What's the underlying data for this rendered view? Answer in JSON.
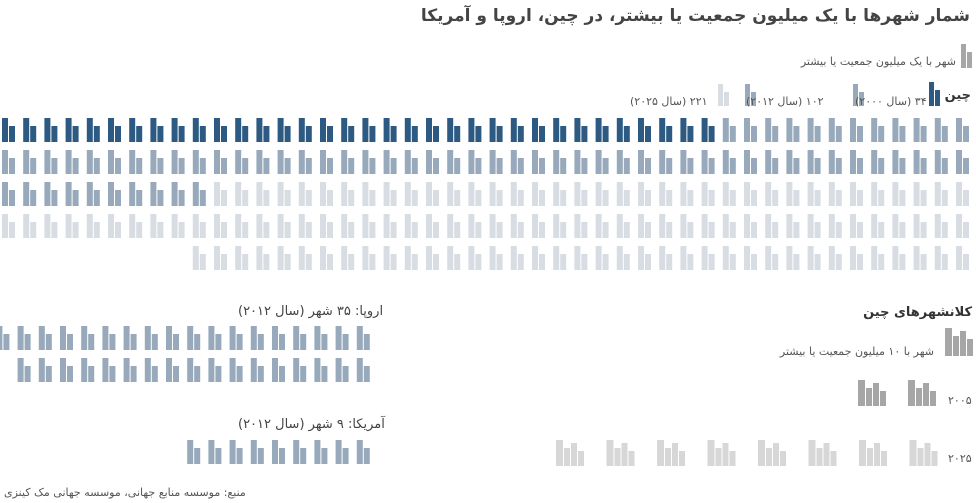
{
  "title": "شمار شهرها با یک میلیون جمعیت یا بیشتر، در چین، اروپا و آمریکا",
  "legend": {
    "unit_label": "شهر با یک میلیون جمعیت یا بیشتر",
    "china_label": "چین",
    "y2000": "۳۴ (سال ۲۰۰۰)",
    "y2012": "۱۰۲ (سال ۲۰۱۲)",
    "y2025": "۲۲۱ (سال ۲۰۲۵)"
  },
  "europe_label": "اروپا: ۳۵ شهر (سال ۲۰۱۲)",
  "america_label": "آمریکا: ۹ شهر (سال ۲۰۱۲)",
  "megacities": {
    "title": "کلانشهرهای چین",
    "unit_label": "شهر با  ۱۰ میلیون جمعیت یا بیشتر",
    "year_2005": "۲۰۰۵",
    "year_2025": "۲۰۲۵"
  },
  "source": "منبع: موسسه منابع جهانی، موسسه جهانی مک کینزی",
  "colors": {
    "y2000": "#2d5a82",
    "y2012": "#97a9bb",
    "y2025": "#d7dde3",
    "megacity": "#a6a6a6",
    "megacity_2025": "#d7d7d7"
  },
  "chart_data": [
    {
      "type": "bar",
      "title": "چین",
      "categories": [
        "۳۴ (سال ۲۰۰۰)",
        "۱۰۲ (سال ۲۰۱۲)",
        "۲۲۱ (سال ۲۰۲۵)"
      ],
      "values": [
        34,
        102,
        221
      ]
    },
    {
      "type": "bar",
      "title": "کلانشهرهای چین",
      "categories": [
        "۲۰۰۵",
        "۲۰۲۵"
      ],
      "values": [
        2,
        8
      ]
    },
    {
      "type": "bar",
      "categories": [
        "اروپا: ۳۵ شهر (سال ۲۰۱۲)",
        "آمریکا: ۹ شهر (سال ۲۰۱۲)"
      ],
      "values": [
        35,
        9
      ]
    }
  ]
}
